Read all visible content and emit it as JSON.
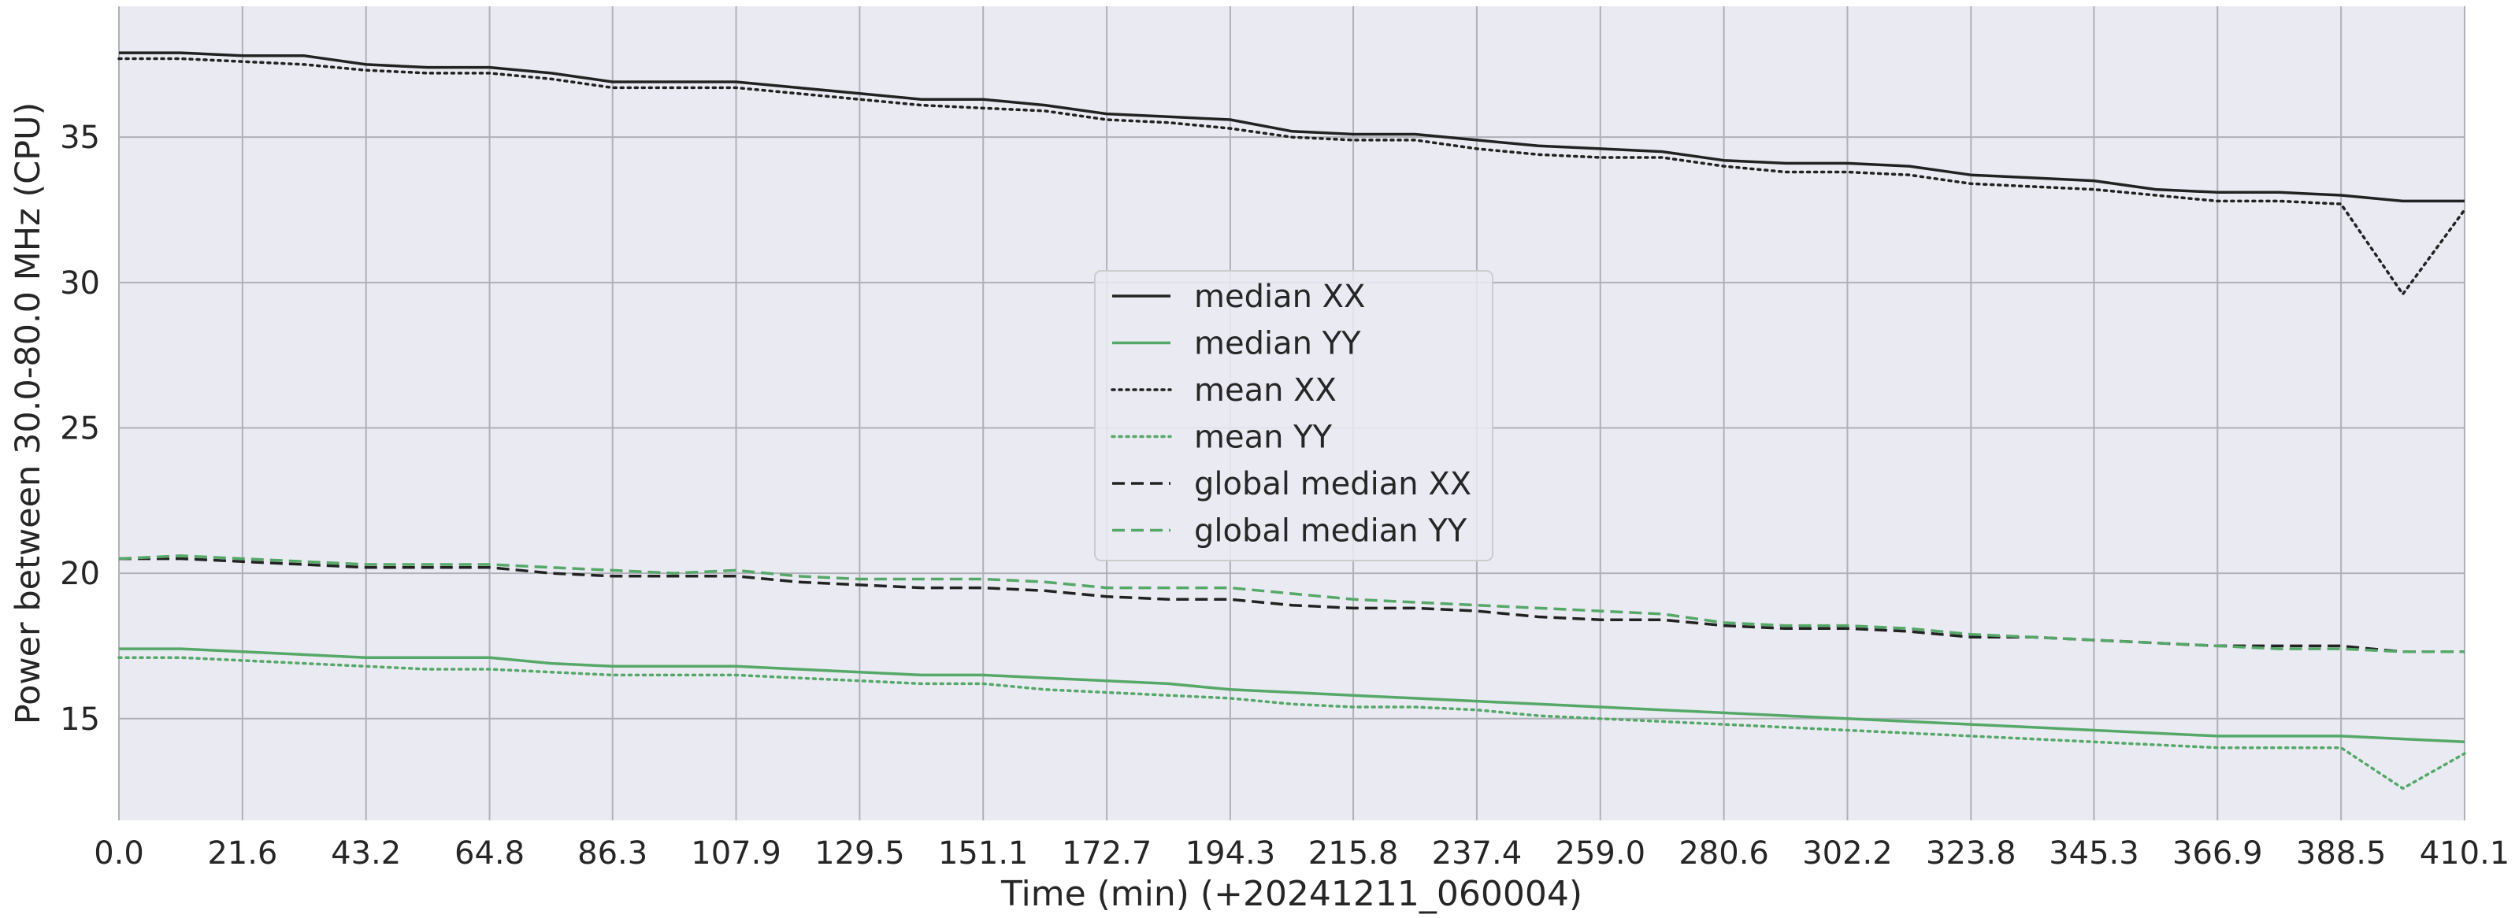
{
  "colors": {
    "plot_background": "#eaeaf2",
    "grid": "#b0b0b8",
    "xx_series": "#222222",
    "yy_series": "#55a868",
    "text": "#262626"
  },
  "chart_data": {
    "type": "line",
    "xlabel": "Time (min) (+20241211_060004)",
    "ylabel": "Power between 30.0-80.0 MHz  (CPU)",
    "xlim": [
      0,
      410.1
    ],
    "ylim": [
      11.5,
      39.5
    ],
    "grid": true,
    "legend_position": "center",
    "x_ticks": [
      0.0,
      21.6,
      43.2,
      64.8,
      86.3,
      107.9,
      129.5,
      151.1,
      172.7,
      194.3,
      215.8,
      237.4,
      259.0,
      280.6,
      302.2,
      323.8,
      345.3,
      366.9,
      388.5,
      410.1
    ],
    "x_tick_labels": [
      "0.0",
      "21.6",
      "43.2",
      "64.8",
      "86.3",
      "107.9",
      "129.5",
      "151.1",
      "172.7",
      "194.3",
      "215.8",
      "237.4",
      "259.0",
      "280.6",
      "302.2",
      "323.8",
      "345.3",
      "366.9",
      "388.5",
      "410.1"
    ],
    "y_ticks": [
      15,
      20,
      25,
      30,
      35
    ],
    "y_tick_labels": [
      "15",
      "20",
      "25",
      "30",
      "35"
    ],
    "x": [
      0,
      10.8,
      21.6,
      32.4,
      43.2,
      54.0,
      64.8,
      75.6,
      86.3,
      97.1,
      107.9,
      118.7,
      129.5,
      140.3,
      151.1,
      161.9,
      172.7,
      183.5,
      194.3,
      205.1,
      215.8,
      226.6,
      237.4,
      248.2,
      259.0,
      269.8,
      280.6,
      291.4,
      302.2,
      313.0,
      323.8,
      334.6,
      345.3,
      356.1,
      366.9,
      377.7,
      388.5,
      399.3,
      410.1
    ],
    "series": [
      {
        "name": "median XX",
        "color": "#222222",
        "dash": "solid",
        "values": [
          37.9,
          37.9,
          37.8,
          37.8,
          37.5,
          37.4,
          37.4,
          37.2,
          36.9,
          36.9,
          36.9,
          36.7,
          36.5,
          36.3,
          36.3,
          36.1,
          35.8,
          35.7,
          35.6,
          35.2,
          35.1,
          35.1,
          34.9,
          34.7,
          34.6,
          34.5,
          34.2,
          34.1,
          34.1,
          34.0,
          33.7,
          33.6,
          33.5,
          33.2,
          33.1,
          33.1,
          33.0,
          32.8,
          32.8
        ]
      },
      {
        "name": "median YY",
        "color": "#55a868",
        "dash": "solid",
        "values": [
          17.4,
          17.4,
          17.3,
          17.2,
          17.1,
          17.1,
          17.1,
          16.9,
          16.8,
          16.8,
          16.8,
          16.7,
          16.6,
          16.5,
          16.5,
          16.4,
          16.3,
          16.2,
          16.0,
          15.9,
          15.8,
          15.7,
          15.6,
          15.5,
          15.4,
          15.3,
          15.2,
          15.1,
          15.0,
          14.9,
          14.8,
          14.7,
          14.6,
          14.5,
          14.4,
          14.4,
          14.4,
          14.3,
          14.2
        ]
      },
      {
        "name": "mean XX",
        "color": "#222222",
        "dash": "dotted",
        "values": [
          37.7,
          37.7,
          37.6,
          37.5,
          37.3,
          37.2,
          37.2,
          37.0,
          36.7,
          36.7,
          36.7,
          36.5,
          36.3,
          36.1,
          36.0,
          35.9,
          35.6,
          35.5,
          35.3,
          35.0,
          34.9,
          34.9,
          34.6,
          34.4,
          34.3,
          34.3,
          34.0,
          33.8,
          33.8,
          33.7,
          33.4,
          33.3,
          33.2,
          33.0,
          32.8,
          32.8,
          32.7,
          29.6,
          32.5
        ]
      },
      {
        "name": "mean YY",
        "color": "#55a868",
        "dash": "dotted",
        "values": [
          17.1,
          17.1,
          17.0,
          16.9,
          16.8,
          16.7,
          16.7,
          16.6,
          16.5,
          16.5,
          16.5,
          16.4,
          16.3,
          16.2,
          16.2,
          16.0,
          15.9,
          15.8,
          15.7,
          15.5,
          15.4,
          15.4,
          15.3,
          15.1,
          15.0,
          14.9,
          14.8,
          14.7,
          14.6,
          14.5,
          14.4,
          14.3,
          14.2,
          14.1,
          14.0,
          14.0,
          14.0,
          12.6,
          13.8
        ]
      },
      {
        "name": "global median XX",
        "color": "#222222",
        "dash": "dashed",
        "values": [
          20.5,
          20.5,
          20.4,
          20.3,
          20.2,
          20.2,
          20.2,
          20.0,
          19.9,
          19.9,
          19.9,
          19.7,
          19.6,
          19.5,
          19.5,
          19.4,
          19.2,
          19.1,
          19.1,
          18.9,
          18.8,
          18.8,
          18.7,
          18.5,
          18.4,
          18.4,
          18.2,
          18.1,
          18.1,
          18.0,
          17.8,
          17.8,
          17.7,
          17.6,
          17.5,
          17.5,
          17.5,
          17.3,
          17.3
        ]
      },
      {
        "name": "global median YY",
        "color": "#55a868",
        "dash": "dashed",
        "values": [
          20.5,
          20.6,
          20.5,
          20.4,
          20.3,
          20.3,
          20.3,
          20.2,
          20.1,
          20.0,
          20.1,
          19.9,
          19.8,
          19.8,
          19.8,
          19.7,
          19.5,
          19.5,
          19.5,
          19.3,
          19.1,
          19.0,
          18.9,
          18.8,
          18.7,
          18.6,
          18.3,
          18.2,
          18.2,
          18.1,
          17.9,
          17.8,
          17.7,
          17.6,
          17.5,
          17.4,
          17.4,
          17.3,
          17.3
        ]
      }
    ]
  }
}
